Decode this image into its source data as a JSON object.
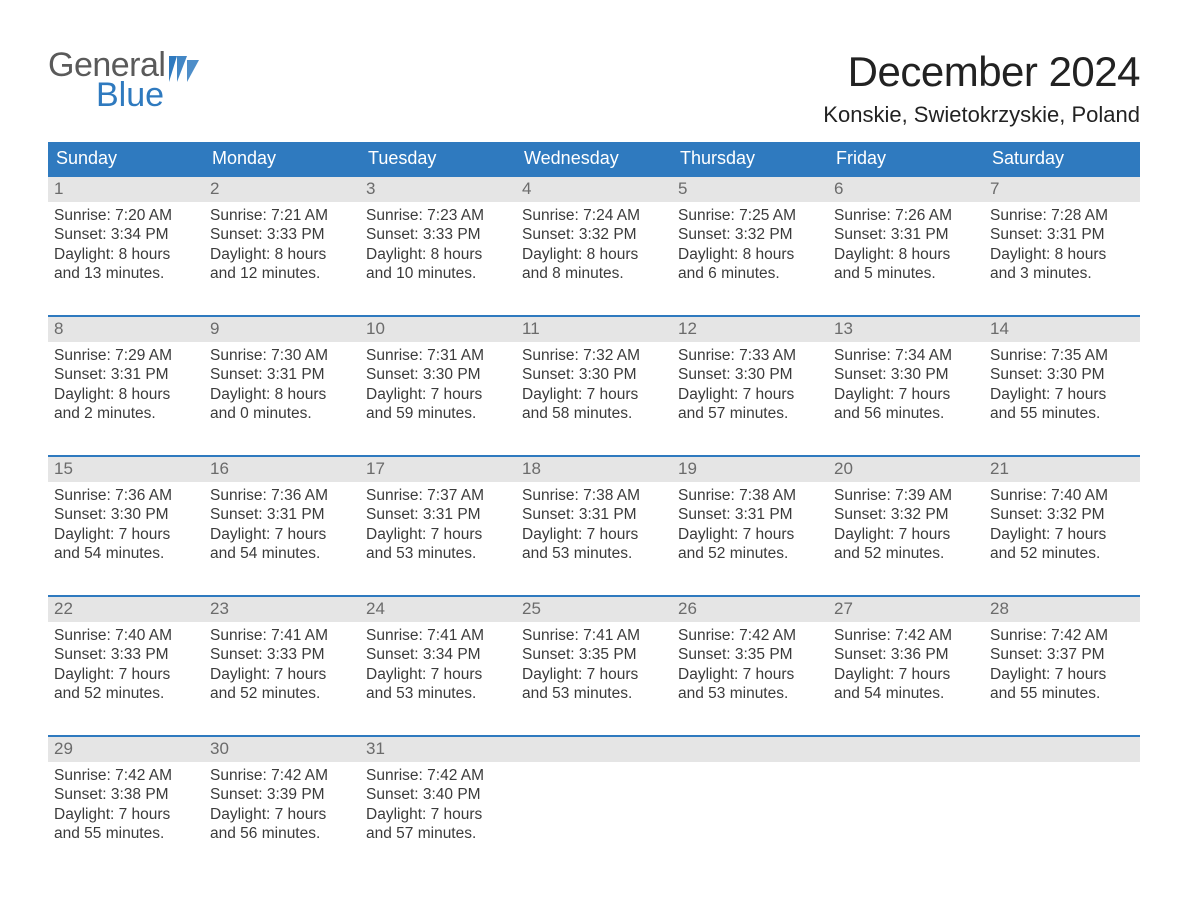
{
  "colors": {
    "header_bg": "#2f7abf",
    "header_fg": "#ffffff",
    "daynum_bg": "#e5e5e5",
    "daynum_fg": "#6b6b6b",
    "row_border": "#2f7abf",
    "text": "#3b3b3b",
    "title": "#222222",
    "logo_dark": "#5a5a5a",
    "logo_blue": "#2f7abf",
    "page_bg": "#ffffff"
  },
  "fonts": {
    "month_title_pt": 42,
    "location_pt": 22,
    "header_pt": 18,
    "daynum_pt": 17,
    "body_pt": 15.5,
    "logo_pt": 34
  },
  "logo": {
    "line1": "General",
    "line2": "Blue"
  },
  "title": "December 2024",
  "location": "Konskie, Swietokrzyskie, Poland",
  "day_headers": [
    "Sunday",
    "Monday",
    "Tuesday",
    "Wednesday",
    "Thursday",
    "Friday",
    "Saturday"
  ],
  "weeks": [
    [
      {
        "n": "1",
        "sr": "Sunrise: 7:20 AM",
        "ss": "Sunset: 3:34 PM",
        "d1": "Daylight: 8 hours",
        "d2": "and 13 minutes."
      },
      {
        "n": "2",
        "sr": "Sunrise: 7:21 AM",
        "ss": "Sunset: 3:33 PM",
        "d1": "Daylight: 8 hours",
        "d2": "and 12 minutes."
      },
      {
        "n": "3",
        "sr": "Sunrise: 7:23 AM",
        "ss": "Sunset: 3:33 PM",
        "d1": "Daylight: 8 hours",
        "d2": "and 10 minutes."
      },
      {
        "n": "4",
        "sr": "Sunrise: 7:24 AM",
        "ss": "Sunset: 3:32 PM",
        "d1": "Daylight: 8 hours",
        "d2": "and 8 minutes."
      },
      {
        "n": "5",
        "sr": "Sunrise: 7:25 AM",
        "ss": "Sunset: 3:32 PM",
        "d1": "Daylight: 8 hours",
        "d2": "and 6 minutes."
      },
      {
        "n": "6",
        "sr": "Sunrise: 7:26 AM",
        "ss": "Sunset: 3:31 PM",
        "d1": "Daylight: 8 hours",
        "d2": "and 5 minutes."
      },
      {
        "n": "7",
        "sr": "Sunrise: 7:28 AM",
        "ss": "Sunset: 3:31 PM",
        "d1": "Daylight: 8 hours",
        "d2": "and 3 minutes."
      }
    ],
    [
      {
        "n": "8",
        "sr": "Sunrise: 7:29 AM",
        "ss": "Sunset: 3:31 PM",
        "d1": "Daylight: 8 hours",
        "d2": "and 2 minutes."
      },
      {
        "n": "9",
        "sr": "Sunrise: 7:30 AM",
        "ss": "Sunset: 3:31 PM",
        "d1": "Daylight: 8 hours",
        "d2": "and 0 minutes."
      },
      {
        "n": "10",
        "sr": "Sunrise: 7:31 AM",
        "ss": "Sunset: 3:30 PM",
        "d1": "Daylight: 7 hours",
        "d2": "and 59 minutes."
      },
      {
        "n": "11",
        "sr": "Sunrise: 7:32 AM",
        "ss": "Sunset: 3:30 PM",
        "d1": "Daylight: 7 hours",
        "d2": "and 58 minutes."
      },
      {
        "n": "12",
        "sr": "Sunrise: 7:33 AM",
        "ss": "Sunset: 3:30 PM",
        "d1": "Daylight: 7 hours",
        "d2": "and 57 minutes."
      },
      {
        "n": "13",
        "sr": "Sunrise: 7:34 AM",
        "ss": "Sunset: 3:30 PM",
        "d1": "Daylight: 7 hours",
        "d2": "and 56 minutes."
      },
      {
        "n": "14",
        "sr": "Sunrise: 7:35 AM",
        "ss": "Sunset: 3:30 PM",
        "d1": "Daylight: 7 hours",
        "d2": "and 55 minutes."
      }
    ],
    [
      {
        "n": "15",
        "sr": "Sunrise: 7:36 AM",
        "ss": "Sunset: 3:30 PM",
        "d1": "Daylight: 7 hours",
        "d2": "and 54 minutes."
      },
      {
        "n": "16",
        "sr": "Sunrise: 7:36 AM",
        "ss": "Sunset: 3:31 PM",
        "d1": "Daylight: 7 hours",
        "d2": "and 54 minutes."
      },
      {
        "n": "17",
        "sr": "Sunrise: 7:37 AM",
        "ss": "Sunset: 3:31 PM",
        "d1": "Daylight: 7 hours",
        "d2": "and 53 minutes."
      },
      {
        "n": "18",
        "sr": "Sunrise: 7:38 AM",
        "ss": "Sunset: 3:31 PM",
        "d1": "Daylight: 7 hours",
        "d2": "and 53 minutes."
      },
      {
        "n": "19",
        "sr": "Sunrise: 7:38 AM",
        "ss": "Sunset: 3:31 PM",
        "d1": "Daylight: 7 hours",
        "d2": "and 52 minutes."
      },
      {
        "n": "20",
        "sr": "Sunrise: 7:39 AM",
        "ss": "Sunset: 3:32 PM",
        "d1": "Daylight: 7 hours",
        "d2": "and 52 minutes."
      },
      {
        "n": "21",
        "sr": "Sunrise: 7:40 AM",
        "ss": "Sunset: 3:32 PM",
        "d1": "Daylight: 7 hours",
        "d2": "and 52 minutes."
      }
    ],
    [
      {
        "n": "22",
        "sr": "Sunrise: 7:40 AM",
        "ss": "Sunset: 3:33 PM",
        "d1": "Daylight: 7 hours",
        "d2": "and 52 minutes."
      },
      {
        "n": "23",
        "sr": "Sunrise: 7:41 AM",
        "ss": "Sunset: 3:33 PM",
        "d1": "Daylight: 7 hours",
        "d2": "and 52 minutes."
      },
      {
        "n": "24",
        "sr": "Sunrise: 7:41 AM",
        "ss": "Sunset: 3:34 PM",
        "d1": "Daylight: 7 hours",
        "d2": "and 53 minutes."
      },
      {
        "n": "25",
        "sr": "Sunrise: 7:41 AM",
        "ss": "Sunset: 3:35 PM",
        "d1": "Daylight: 7 hours",
        "d2": "and 53 minutes."
      },
      {
        "n": "26",
        "sr": "Sunrise: 7:42 AM",
        "ss": "Sunset: 3:35 PM",
        "d1": "Daylight: 7 hours",
        "d2": "and 53 minutes."
      },
      {
        "n": "27",
        "sr": "Sunrise: 7:42 AM",
        "ss": "Sunset: 3:36 PM",
        "d1": "Daylight: 7 hours",
        "d2": "and 54 minutes."
      },
      {
        "n": "28",
        "sr": "Sunrise: 7:42 AM",
        "ss": "Sunset: 3:37 PM",
        "d1": "Daylight: 7 hours",
        "d2": "and 55 minutes."
      }
    ],
    [
      {
        "n": "29",
        "sr": "Sunrise: 7:42 AM",
        "ss": "Sunset: 3:38 PM",
        "d1": "Daylight: 7 hours",
        "d2": "and 55 minutes."
      },
      {
        "n": "30",
        "sr": "Sunrise: 7:42 AM",
        "ss": "Sunset: 3:39 PM",
        "d1": "Daylight: 7 hours",
        "d2": "and 56 minutes."
      },
      {
        "n": "31",
        "sr": "Sunrise: 7:42 AM",
        "ss": "Sunset: 3:40 PM",
        "d1": "Daylight: 7 hours",
        "d2": "and 57 minutes."
      },
      null,
      null,
      null,
      null
    ]
  ]
}
